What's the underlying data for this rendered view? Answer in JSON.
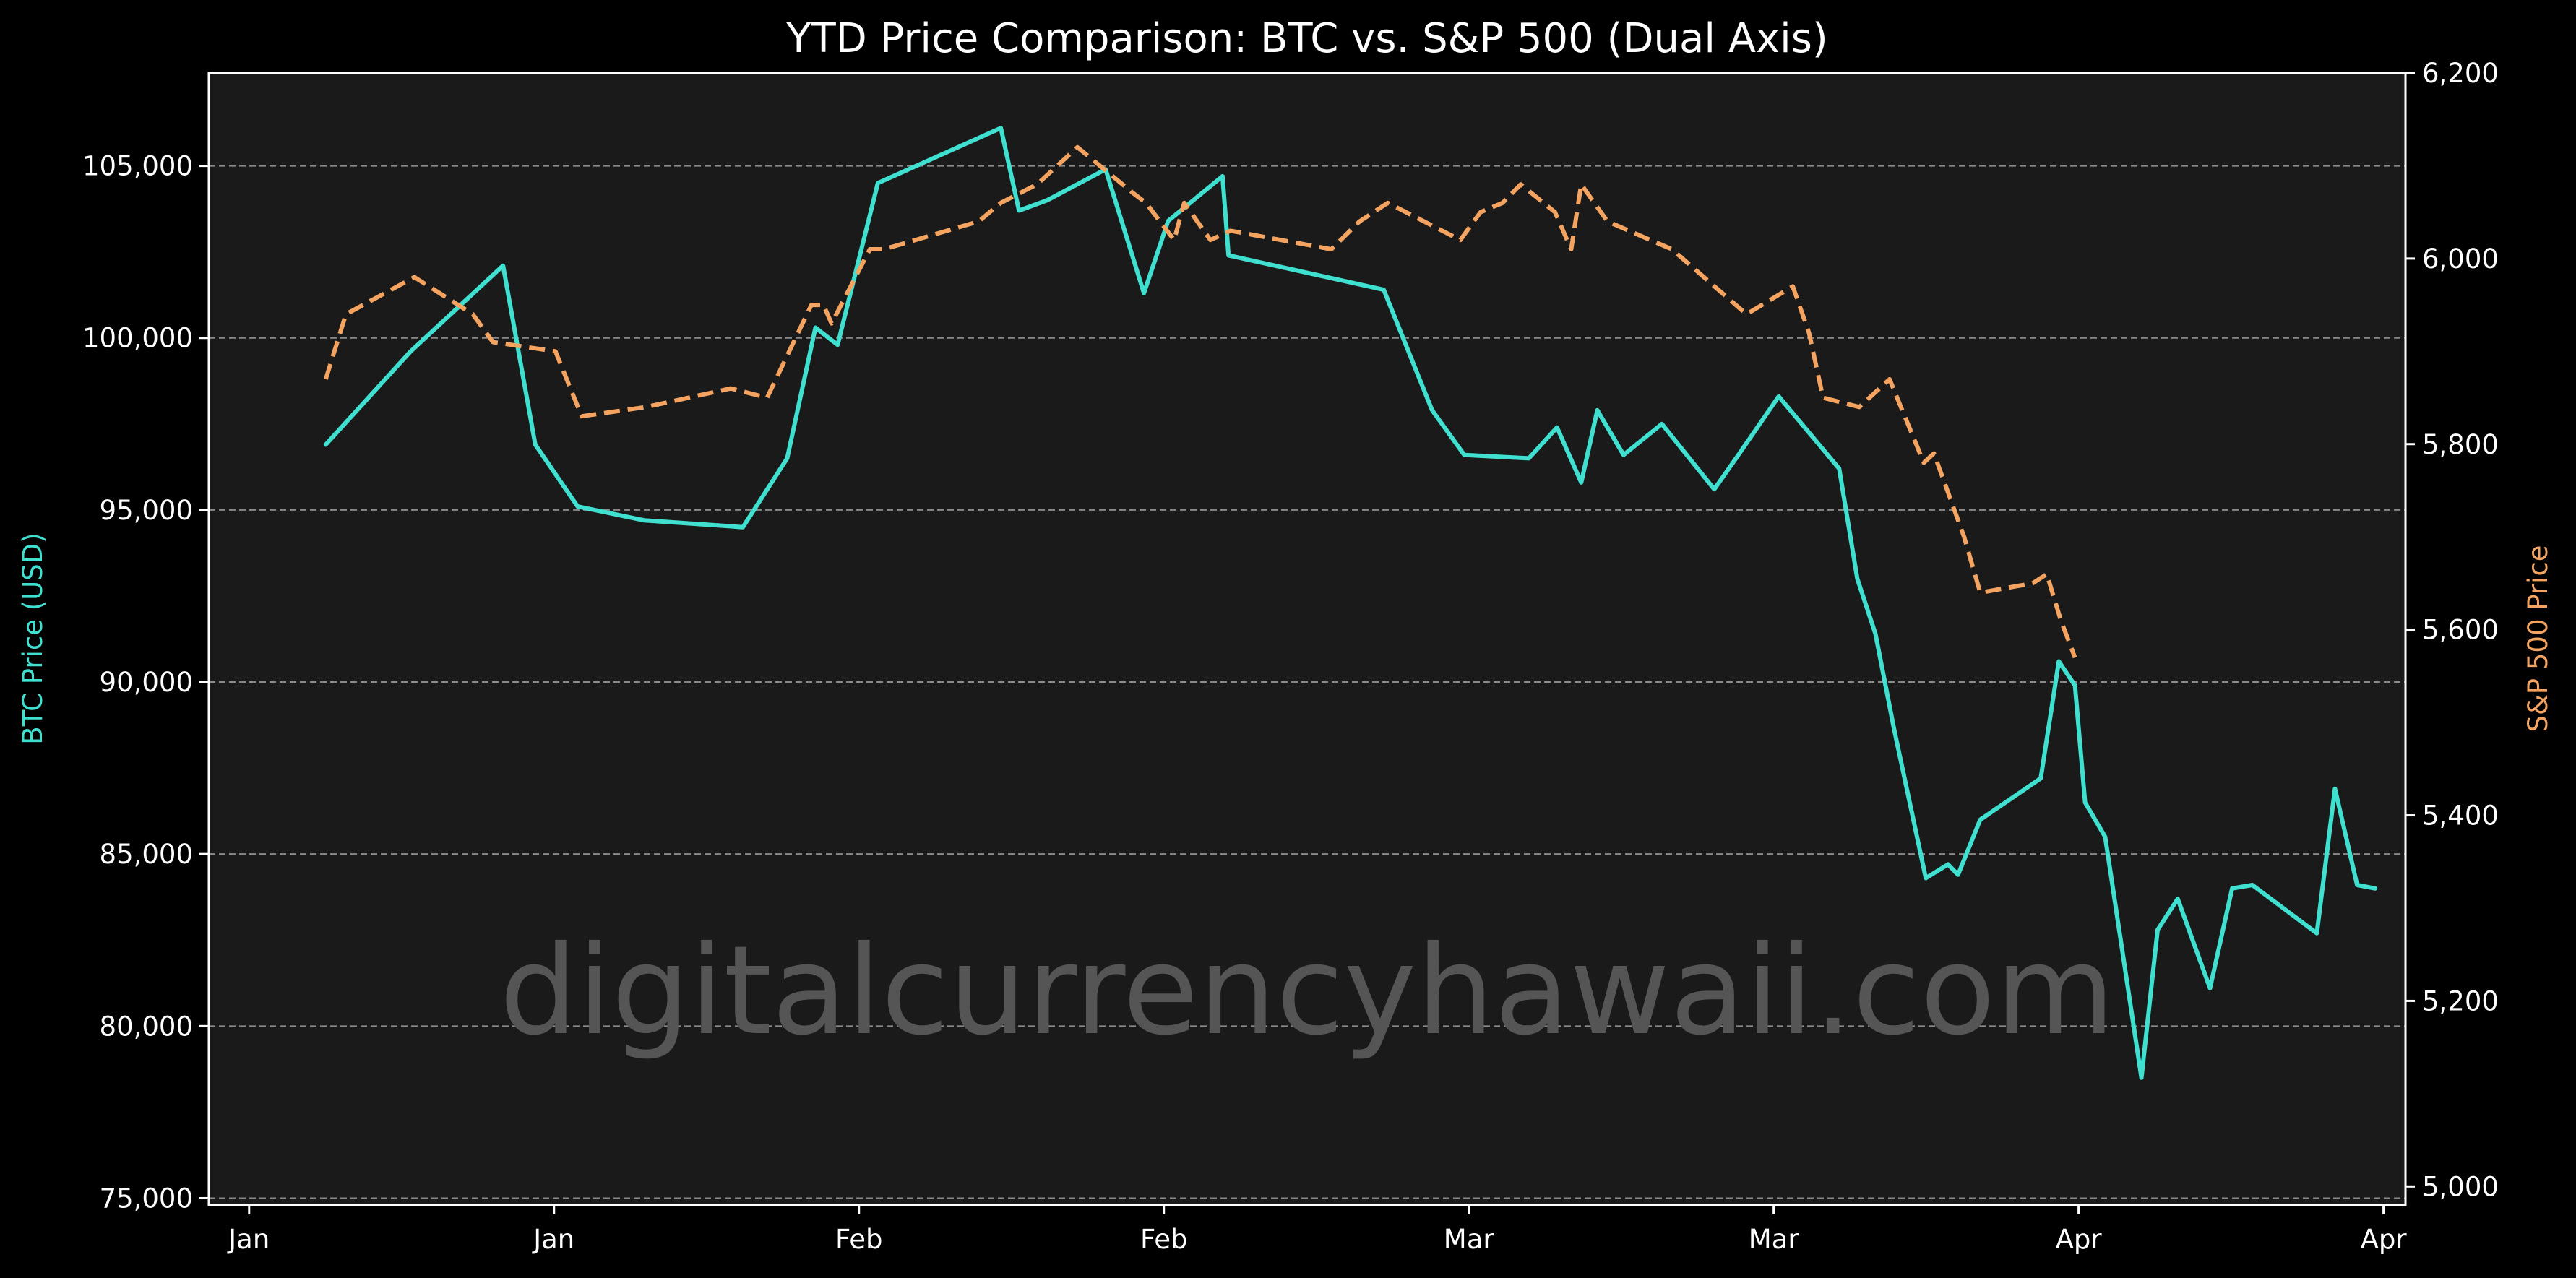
{
  "chart_data": {
    "type": "line",
    "title": "YTD Price Comparison: BTC vs. S&P 500 (Dual Axis)",
    "xlabel": "",
    "ylabel_left": "BTC Price (USD)",
    "ylabel_right": "S&P 500 Price",
    "x_tick_labels": [
      "Jan",
      "Jan",
      "Feb",
      "Feb",
      "Mar",
      "Mar",
      "Apr",
      "Apr"
    ],
    "xlim": [
      -5,
      104
    ],
    "ylim_left": [
      74800,
      107700
    ],
    "ylim_right": [
      4980,
      6200
    ],
    "y_ticks_left": [
      75000,
      80000,
      85000,
      90000,
      95000,
      100000,
      105000
    ],
    "y_ticks_right": [
      5000,
      5200,
      5400,
      5600,
      5800,
      6000,
      6200
    ],
    "y_tick_labels_left": [
      "75,000",
      "80,000",
      "85,000",
      "90,000",
      "95,000",
      "100,000",
      "105,000"
    ],
    "y_tick_labels_right": [
      "5,000",
      "5,200",
      "5,400",
      "5,600",
      "5,800",
      "6,000",
      "6,200"
    ],
    "grid": "horizontal dashed",
    "watermark": "digitalcurrencyhawaii.com",
    "colors": {
      "background": "#000000",
      "plot_background": "#1a1a1a",
      "btc": "#40e0d0",
      "spx": "#f4a460",
      "grid": "#8a8a8a",
      "text": "#ffffff"
    },
    "series": [
      {
        "name": "BTC",
        "axis": "left",
        "x": [
          0.8,
          5,
          9.6,
          11.2,
          13.3,
          16.6,
          21.5,
          23.7,
          25.1,
          26.2,
          28.2,
          34.3,
          35.2,
          36.6,
          39.5,
          41.4,
          42.6,
          45.3,
          45.6,
          53.3,
          55.7,
          57.3,
          60.5,
          61.9,
          63.1,
          63.9,
          65.2,
          67.1,
          69.7,
          70.9,
          72.9,
          75.9,
          76.8,
          77.7,
          78.6,
          80.2,
          81.3,
          81.8,
          82.9,
          85.9,
          86.8,
          87.6,
          88.1,
          89.1,
          90.9,
          91.7,
          92.7,
          94.3,
          95.4,
          96.4,
          99.6,
          100.5,
          101.6,
          102.5
        ],
        "y": [
          96900,
          99600,
          102100,
          96900,
          95100,
          94700,
          94500,
          96500,
          100300,
          99800,
          104500,
          106100,
          103700,
          104000,
          104900,
          101300,
          103400,
          104700,
          102400,
          101400,
          97900,
          96600,
          96500,
          97400,
          95800,
          97900,
          96600,
          97500,
          95600,
          96600,
          98300,
          96200,
          93000,
          91400,
          88700,
          84300,
          84700,
          84400,
          86000,
          87200,
          90600,
          89900,
          86500,
          85500,
          78500,
          82800,
          83700,
          81100,
          84000,
          84100,
          82700,
          86900,
          84100,
          84000
        ]
      },
      {
        "name": "S&P 500",
        "axis": "right",
        "x": [
          0.8,
          1.8,
          5.2,
          8.1,
          9.1,
          12.2,
          13.5,
          16.7,
          20.9,
          22.7,
          24.9,
          25.5,
          25.9,
          27.8,
          28.5,
          33.2,
          34.3,
          36.1,
          38.1,
          40.9,
          41.5,
          42.9,
          43.4,
          44.7,
          45.7,
          50.7,
          52.1,
          53.5,
          57.1,
          58.1,
          59.2,
          60.1,
          61.8,
          62.6,
          63.1,
          64.4,
          67.6,
          71.3,
          73.6,
          74.4,
          75.1,
          76.9,
          78.4,
          80.1,
          80.6,
          82.1,
          82.9,
          85.5,
          86.2,
          86.9,
          87.6
        ],
        "y": [
          5870,
          5940,
          5980,
          5940,
          5910,
          5900,
          5830,
          5840,
          5860,
          5850,
          5950,
          5950,
          5930,
          6010,
          6010,
          6040,
          6060,
          6080,
          6120,
          6070,
          6060,
          6020,
          6060,
          6020,
          6030,
          6010,
          6040,
          6060,
          6020,
          6050,
          6060,
          6080,
          6050,
          6010,
          6080,
          6040,
          6010,
          5940,
          5970,
          5920,
          5850,
          5840,
          5870,
          5780,
          5790,
          5700,
          5640,
          5650,
          5660,
          5610,
          5570
        ]
      }
    ]
  }
}
